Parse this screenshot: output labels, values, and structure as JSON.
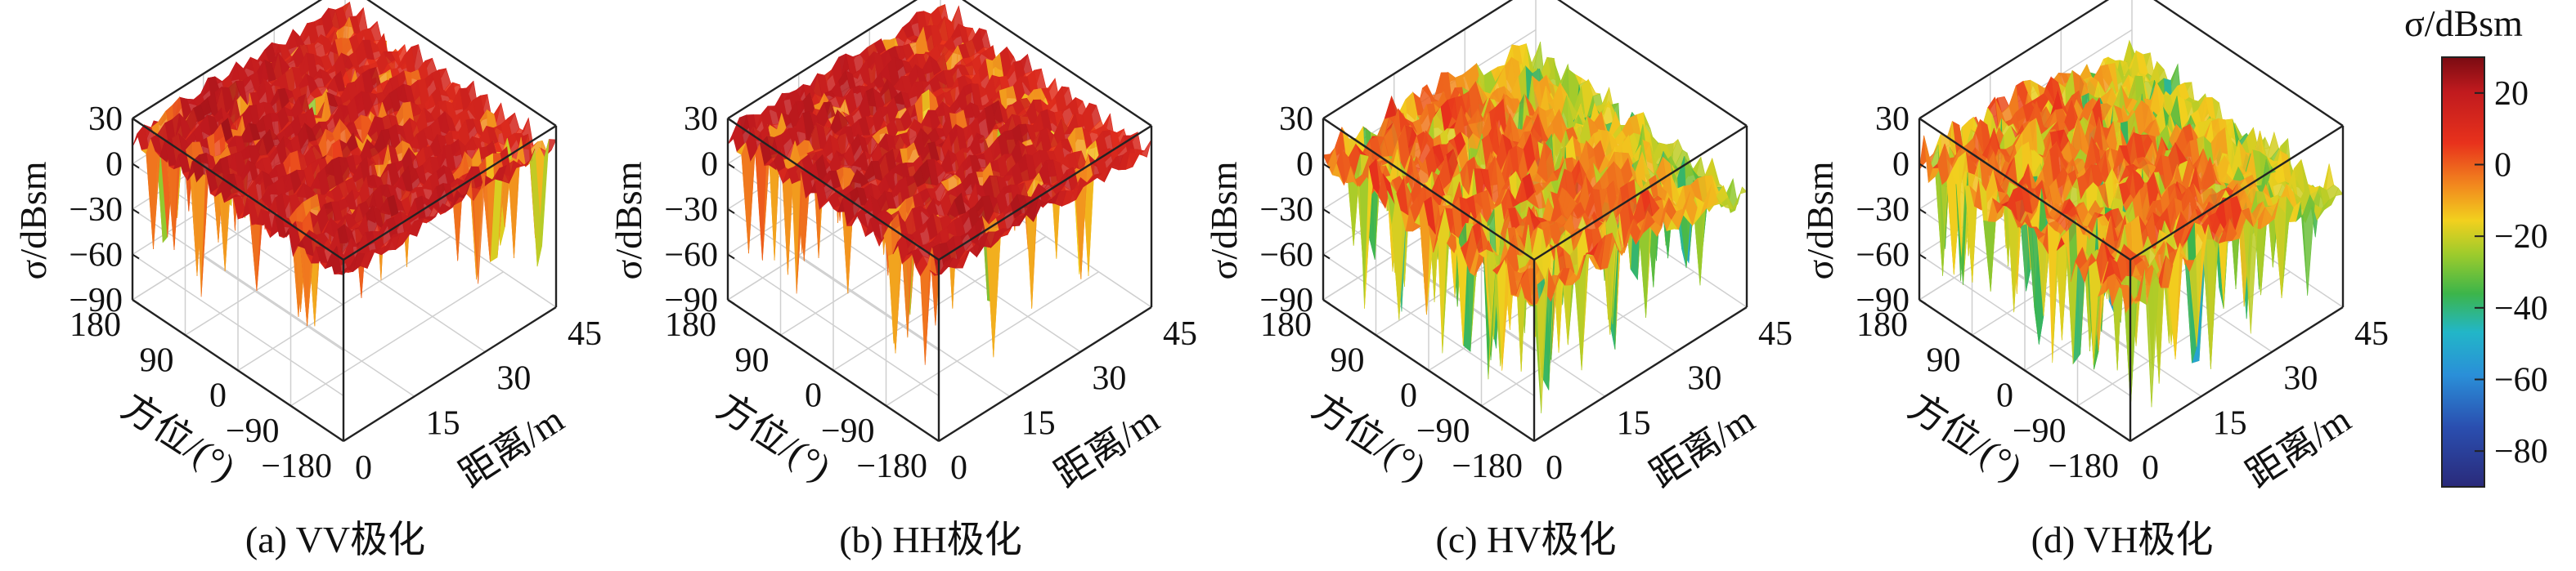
{
  "figure": {
    "colorbar": {
      "title": "σ/dBsm",
      "range": [
        -90,
        30
      ],
      "ticks": [
        -80,
        -60,
        -40,
        -20,
        0,
        20
      ],
      "tick_labels": [
        "−80",
        "−60",
        "−40",
        "−20",
        "0",
        "20"
      ],
      "colormap": "jet"
    }
  },
  "chart_data": [
    {
      "type": "surface",
      "caption": "(a) VV极化",
      "zlabel": "σ/dBsm",
      "xlabel": "距离/m",
      "ylabel": "方位/(°)",
      "xlim": [
        0,
        45
      ],
      "ylim": [
        -180,
        180
      ],
      "zlim": [
        -90,
        30
      ],
      "xticks": [
        "0",
        "15",
        "30",
        "45"
      ],
      "yticks": [
        "−180",
        "−90",
        "0",
        "90",
        "180"
      ],
      "zticks": [
        "−90",
        "−60",
        "−30",
        "0",
        "30"
      ],
      "typical_level_dbsm": 15,
      "min_level_dbsm": -60,
      "dominant_color": "#b5121b"
    },
    {
      "type": "surface",
      "caption": "(b) HH极化",
      "zlabel": "σ/dBsm",
      "xlabel": "距离/m",
      "ylabel": "方位/(°)",
      "xlim": [
        0,
        45
      ],
      "ylim": [
        -180,
        180
      ],
      "zlim": [
        -90,
        30
      ],
      "xticks": [
        "0",
        "15",
        "30",
        "45"
      ],
      "yticks": [
        "−180",
        "−90",
        "0",
        "90",
        "180"
      ],
      "zticks": [
        "−90",
        "−60",
        "−30",
        "0",
        "30"
      ],
      "typical_level_dbsm": 15,
      "min_level_dbsm": -70,
      "dominant_color": "#b5121b"
    },
    {
      "type": "surface",
      "caption": "(c) HV极化",
      "zlabel": "σ/dBsm",
      "xlabel": "距离/m",
      "ylabel": "方位/(°)",
      "xlim": [
        0,
        45
      ],
      "ylim": [
        -180,
        180
      ],
      "zlim": [
        -90,
        30
      ],
      "xticks": [
        "0",
        "15",
        "30",
        "45"
      ],
      "yticks": [
        "−180",
        "−90",
        "0",
        "90",
        "180"
      ],
      "zticks": [
        "−90",
        "−60",
        "−30",
        "0",
        "30"
      ],
      "typical_level_dbsm": 0,
      "min_level_dbsm": -80,
      "dominant_color": "#d2691e"
    },
    {
      "type": "surface",
      "caption": "(d) VH极化",
      "zlabel": "σ/dBsm",
      "xlabel": "距离/m",
      "ylabel": "方位/(°)",
      "xlim": [
        0,
        45
      ],
      "ylim": [
        -180,
        180
      ],
      "zlim": [
        -90,
        30
      ],
      "xticks": [
        "0",
        "15",
        "30",
        "45"
      ],
      "yticks": [
        "−180",
        "−90",
        "0",
        "90",
        "180"
      ],
      "zticks": [
        "−90",
        "−60",
        "−30",
        "0",
        "30"
      ],
      "typical_level_dbsm": 0,
      "min_level_dbsm": -80,
      "dominant_color": "#d2691e"
    }
  ]
}
